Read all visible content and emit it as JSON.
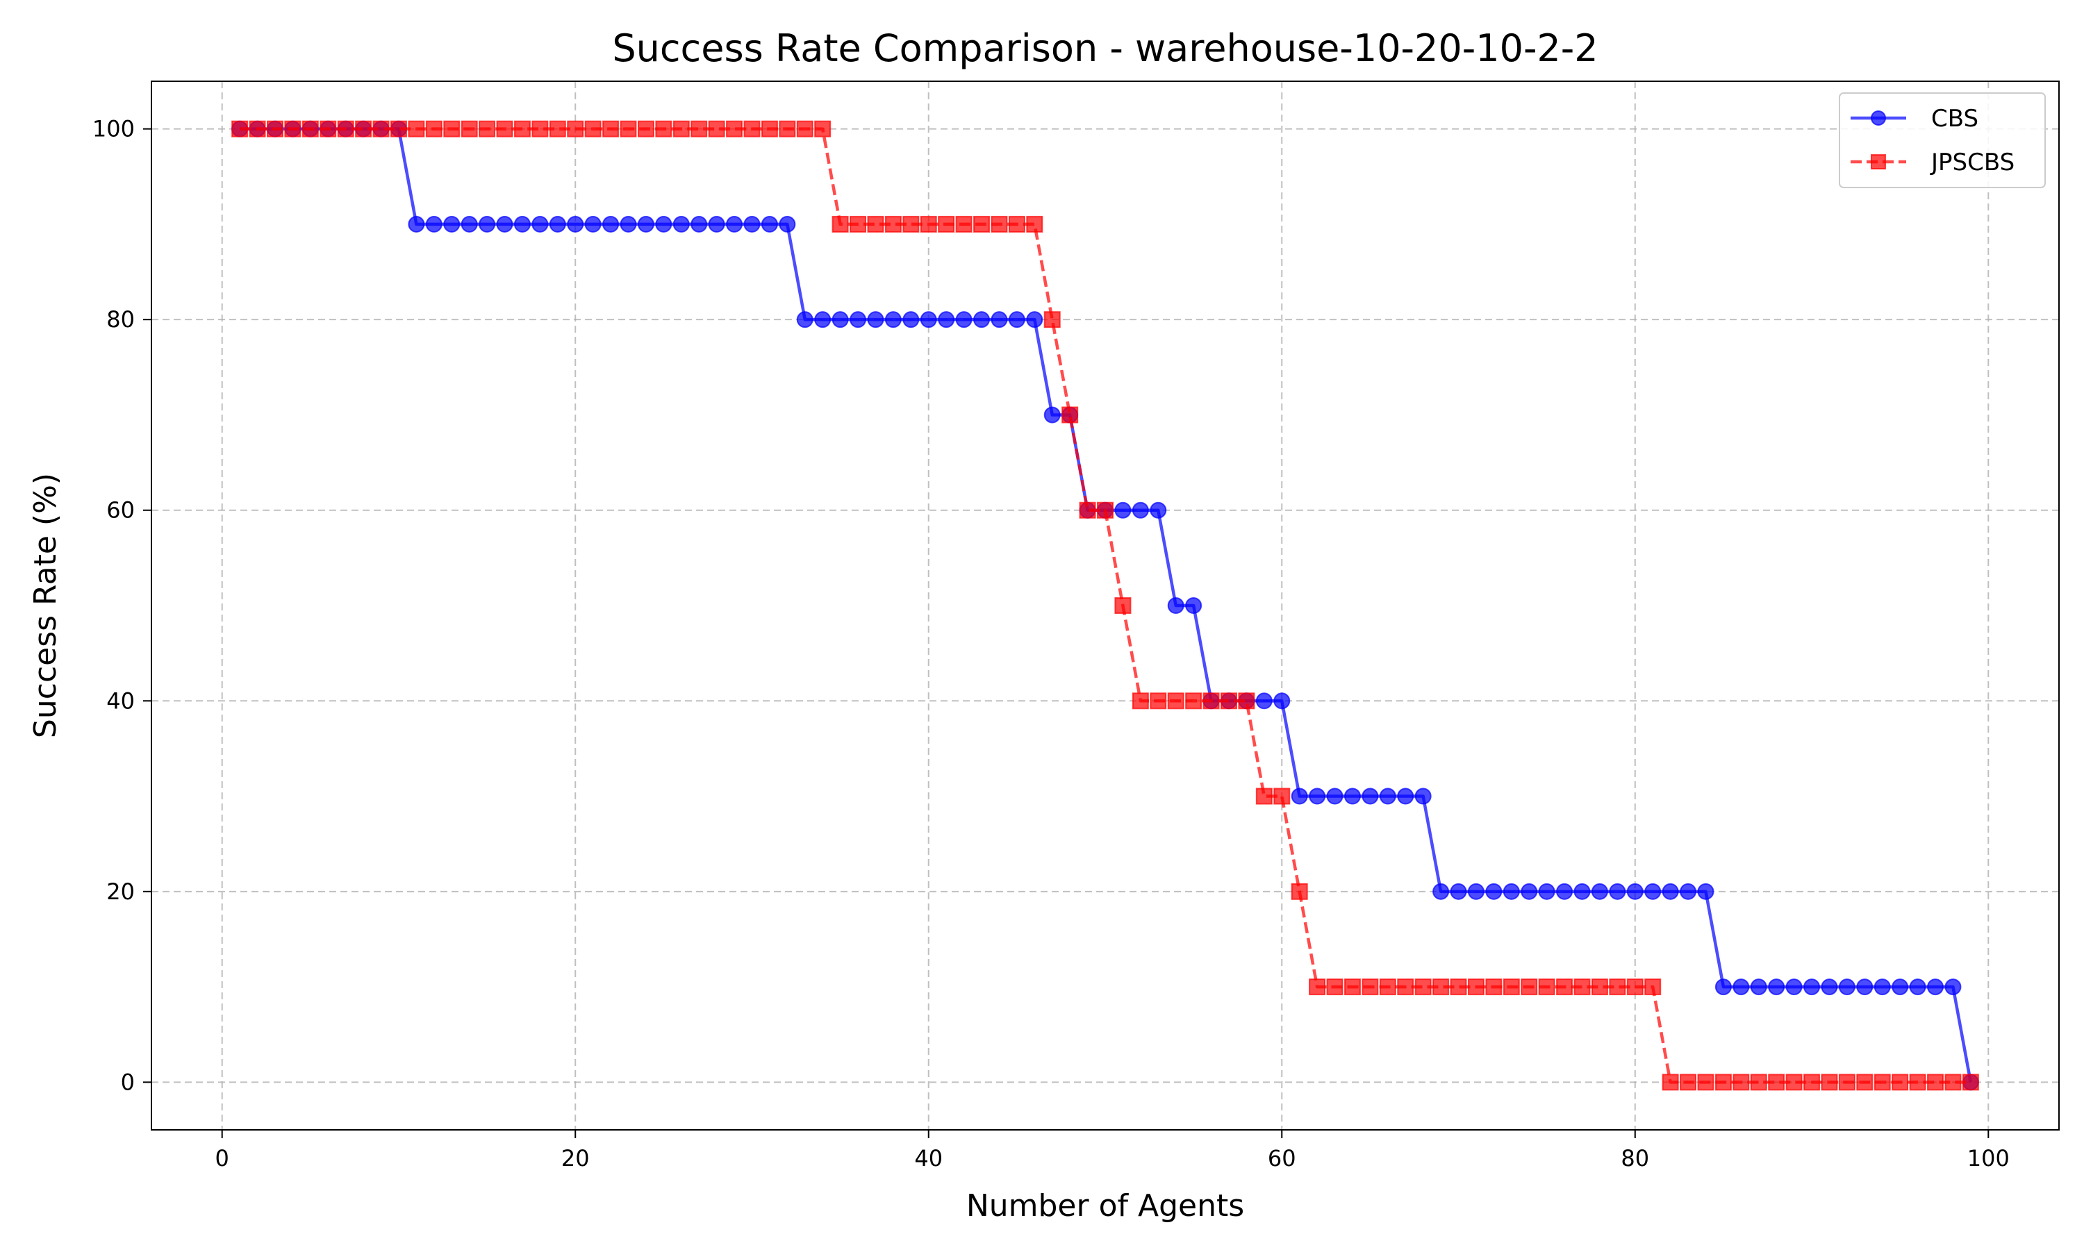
{
  "chart_data": {
    "type": "line",
    "title": "Success Rate Comparison - warehouse-10-20-10-2-2",
    "xlabel": "Number of Agents",
    "ylabel": "Success Rate (%)",
    "xlim": [
      -4,
      104
    ],
    "ylim": [
      -5,
      105
    ],
    "xticks": [
      0,
      20,
      40,
      60,
      80,
      100
    ],
    "yticks": [
      0,
      20,
      40,
      60,
      80,
      100
    ],
    "grid": true,
    "legend_position": "top-right",
    "x": [
      1,
      2,
      3,
      4,
      5,
      6,
      7,
      8,
      9,
      10,
      11,
      12,
      13,
      14,
      15,
      16,
      17,
      18,
      19,
      20,
      21,
      22,
      23,
      24,
      25,
      26,
      27,
      28,
      29,
      30,
      31,
      32,
      33,
      34,
      35,
      36,
      37,
      38,
      39,
      40,
      41,
      42,
      43,
      44,
      45,
      46,
      47,
      48,
      49,
      50,
      51,
      52,
      53,
      54,
      55,
      56,
      57,
      58,
      59,
      60,
      61,
      62,
      63,
      64,
      65,
      66,
      67,
      68,
      69,
      70,
      71,
      72,
      73,
      74,
      75,
      76,
      77,
      78,
      79,
      80,
      81,
      82,
      83,
      84,
      85,
      86,
      87,
      88,
      89,
      90,
      91,
      92,
      93,
      94,
      95,
      96,
      97,
      98,
      99
    ],
    "series": [
      {
        "name": "CBS",
        "color": "#0000ff",
        "marker": "circle",
        "line_style": "solid",
        "values": [
          100,
          100,
          100,
          100,
          100,
          100,
          100,
          100,
          100,
          100,
          90,
          90,
          90,
          90,
          90,
          90,
          90,
          90,
          90,
          90,
          90,
          90,
          90,
          90,
          90,
          90,
          90,
          90,
          90,
          90,
          90,
          90,
          80,
          80,
          80,
          80,
          80,
          80,
          80,
          80,
          80,
          80,
          80,
          80,
          80,
          80,
          70,
          70,
          60,
          60,
          60,
          60,
          60,
          50,
          50,
          40,
          40,
          40,
          40,
          40,
          30,
          30,
          30,
          30,
          30,
          30,
          30,
          30,
          20,
          20,
          20,
          20,
          20,
          20,
          20,
          20,
          20,
          20,
          20,
          20,
          20,
          20,
          20,
          20,
          10,
          10,
          10,
          10,
          10,
          10,
          10,
          10,
          10,
          10,
          10,
          10,
          10,
          10,
          0
        ]
      },
      {
        "name": "JPSCBS",
        "color": "#ff0000",
        "marker": "square",
        "line_style": "dashed",
        "values": [
          100,
          100,
          100,
          100,
          100,
          100,
          100,
          100,
          100,
          100,
          100,
          100,
          100,
          100,
          100,
          100,
          100,
          100,
          100,
          100,
          100,
          100,
          100,
          100,
          100,
          100,
          100,
          100,
          100,
          100,
          100,
          100,
          100,
          100,
          90,
          90,
          90,
          90,
          90,
          90,
          90,
          90,
          90,
          90,
          90,
          90,
          80,
          70,
          60,
          60,
          50,
          40,
          40,
          40,
          40,
          40,
          40,
          40,
          30,
          30,
          20,
          10,
          10,
          10,
          10,
          10,
          10,
          10,
          10,
          10,
          10,
          10,
          10,
          10,
          10,
          10,
          10,
          10,
          10,
          10,
          10,
          0,
          0,
          0,
          0,
          0,
          0,
          0,
          0,
          0,
          0,
          0,
          0,
          0,
          0,
          0,
          0,
          0,
          0
        ]
      }
    ]
  }
}
